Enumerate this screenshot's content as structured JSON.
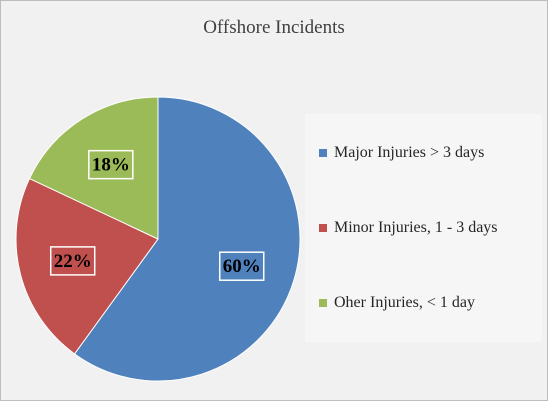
{
  "chart_data": {
    "type": "pie",
    "title": "Offshore Incidents",
    "slices": [
      {
        "label": "Major Injuries > 3 days",
        "value": 60,
        "display": "60%",
        "color": "#4f81bd"
      },
      {
        "label": "Minor Injuries, 1 - 3 days",
        "value": 22,
        "display": "22%",
        "color": "#c0504d"
      },
      {
        "label": "Oher Injuries, < 1 day",
        "value": 18,
        "display": "18%",
        "color": "#9bbb59"
      }
    ],
    "start_angle_deg": 0,
    "direction": "clockwise",
    "legend_position": "right"
  }
}
